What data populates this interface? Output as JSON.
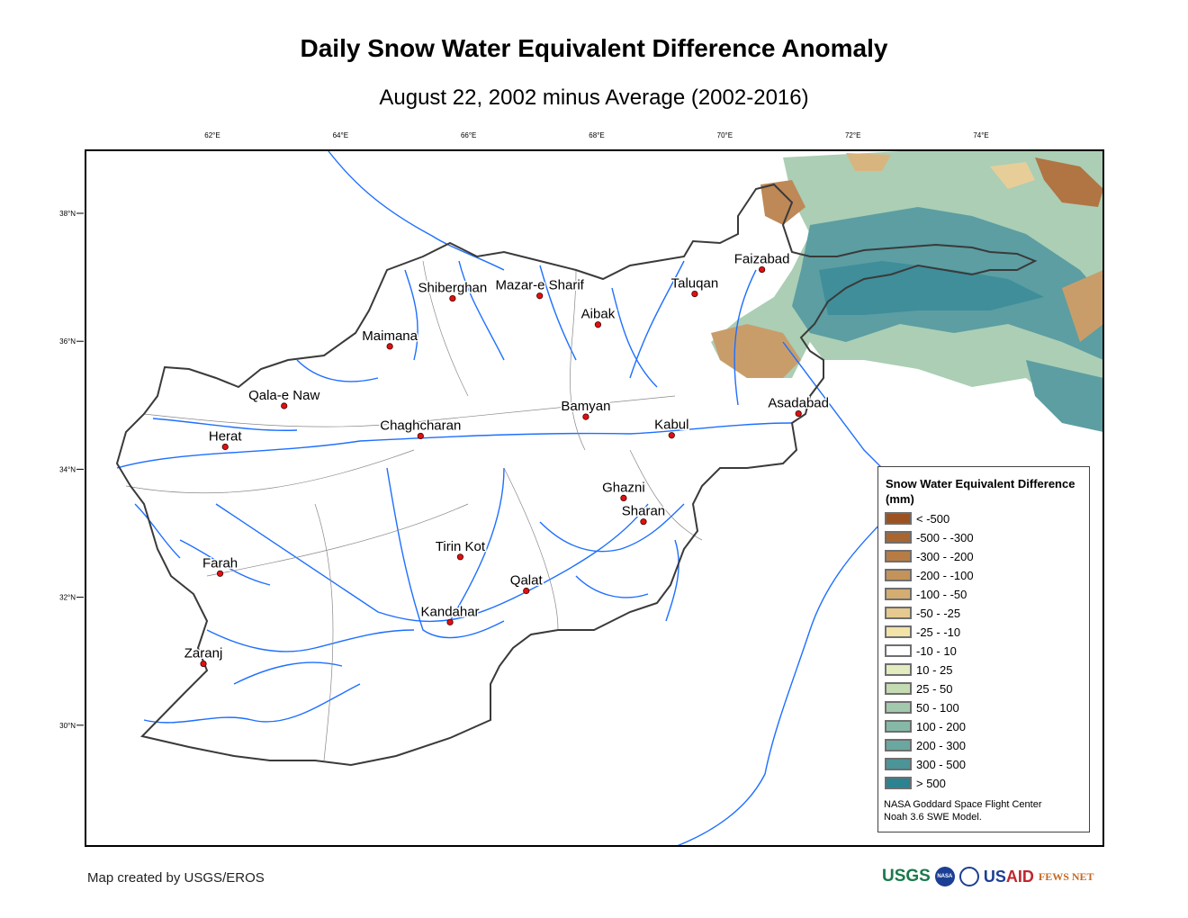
{
  "title": "Daily Snow Water Equivalent Difference Anomaly",
  "subtitle": "August 22, 2002 minus Average (2002-2016)",
  "map": {
    "lon_ticks": [
      {
        "value": 62,
        "label": "62°E"
      },
      {
        "value": 64,
        "label": "64°E"
      },
      {
        "value": 66,
        "label": "66°E"
      },
      {
        "value": 68,
        "label": "68°E"
      },
      {
        "value": 70,
        "label": "70°E"
      },
      {
        "value": 72,
        "label": "72°E"
      },
      {
        "value": 74,
        "label": "74°E"
      }
    ],
    "lat_ticks": [
      {
        "value": 38,
        "label": "38°N"
      },
      {
        "value": 36,
        "label": "36°N"
      },
      {
        "value": 34,
        "label": "34°N"
      },
      {
        "value": 32,
        "label": "32°N"
      },
      {
        "value": 30,
        "label": "30°N"
      }
    ],
    "cities": [
      {
        "name": "Shiberghan",
        "lon": 65.75,
        "lat": 36.67
      },
      {
        "name": "Mazar-e Sharif",
        "lon": 67.11,
        "lat": 36.71
      },
      {
        "name": "Aibak",
        "lon": 68.02,
        "lat": 36.26
      },
      {
        "name": "Maimana",
        "lon": 64.77,
        "lat": 35.92
      },
      {
        "name": "Taluqan",
        "lon": 69.53,
        "lat": 36.74
      },
      {
        "name": "Faizabad",
        "lon": 70.58,
        "lat": 37.12
      },
      {
        "name": "Qala-e Naw",
        "lon": 63.12,
        "lat": 34.99
      },
      {
        "name": "Herat",
        "lon": 62.2,
        "lat": 34.35
      },
      {
        "name": "Chaghcharan",
        "lon": 65.25,
        "lat": 34.52
      },
      {
        "name": "Bamyan",
        "lon": 67.83,
        "lat": 34.82
      },
      {
        "name": "Kabul",
        "lon": 69.17,
        "lat": 34.53
      },
      {
        "name": "Asadabad",
        "lon": 71.15,
        "lat": 34.87
      },
      {
        "name": "Ghazni",
        "lon": 68.42,
        "lat": 33.55
      },
      {
        "name": "Sharan",
        "lon": 68.73,
        "lat": 33.18
      },
      {
        "name": "Tirin Kot",
        "lon": 65.87,
        "lat": 32.63
      },
      {
        "name": "Qalat",
        "lon": 66.9,
        "lat": 32.1
      },
      {
        "name": "Kandahar",
        "lon": 65.71,
        "lat": 31.61
      },
      {
        "name": "Farah",
        "lon": 62.12,
        "lat": 32.37
      },
      {
        "name": "Zaranj",
        "lon": 61.86,
        "lat": 30.96
      }
    ],
    "colors": {
      "river": "#1e6fff",
      "border": "#3a3a3a",
      "city": "#e01010"
    }
  },
  "legend": {
    "title": "Snow Water Equivalent Difference (mm)",
    "items": [
      {
        "label": "< -500",
        "color": "#9c5220"
      },
      {
        "label": "-500 - -300",
        "color": "#a9652f"
      },
      {
        "label": "-300 - -200",
        "color": "#b77c45"
      },
      {
        "label": "-200 - -100",
        "color": "#c4935a"
      },
      {
        "label": "-100 - -50",
        "color": "#d4ad72"
      },
      {
        "label": "-50 - -25",
        "color": "#e5c98e"
      },
      {
        "label": "-25 - -10",
        "color": "#f2e4a8"
      },
      {
        "label": "-10 - 10",
        "color": "#ffffff"
      },
      {
        "label": "10 - 25",
        "color": "#e2ecbf"
      },
      {
        "label": "25 - 50",
        "color": "#c5dbb3"
      },
      {
        "label": "50 - 100",
        "color": "#a3c9ad"
      },
      {
        "label": "100 - 200",
        "color": "#86b8a6"
      },
      {
        "label": "200 - 300",
        "color": "#6aa7a0"
      },
      {
        "label": "300 - 500",
        "color": "#4b9498"
      },
      {
        "label": "> 500",
        "color": "#2b8290"
      }
    ],
    "credit_line1": "NASA Goddard Space Flight Center",
    "credit_line2": "Noah 3.6 SWE Model."
  },
  "footer": "Map created by USGS/EROS",
  "logos": {
    "usgs": "USGS",
    "nasa": "NASA",
    "usaid_a": "US",
    "usaid_b": "AID",
    "fews": "FEWS NET"
  }
}
